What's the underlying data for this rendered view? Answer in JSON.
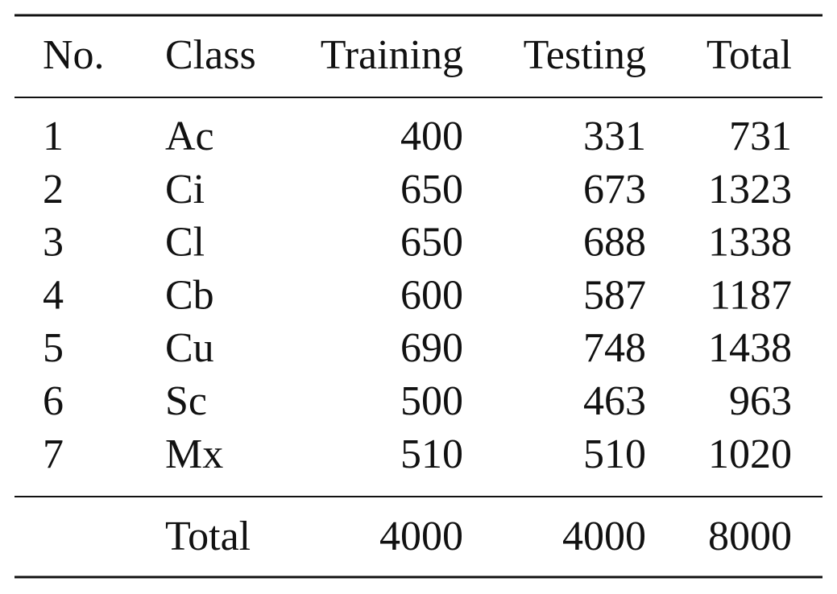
{
  "table": {
    "header": [
      "No.",
      "Class",
      "Training",
      "Testing",
      "Total"
    ],
    "rows": [
      [
        1,
        "Ac",
        400,
        331,
        731
      ],
      [
        2,
        "Ci",
        650,
        673,
        1323
      ],
      [
        3,
        "Cl",
        650,
        688,
        1338
      ],
      [
        4,
        "Cb",
        600,
        587,
        1187
      ],
      [
        5,
        "Cu",
        690,
        748,
        1438
      ],
      [
        6,
        "Sc",
        500,
        463,
        963
      ],
      [
        7,
        "Mx",
        510,
        510,
        1020
      ]
    ],
    "footer": {
      "label": "Total",
      "training": 4000,
      "testing": 4000,
      "total": 8000
    }
  }
}
